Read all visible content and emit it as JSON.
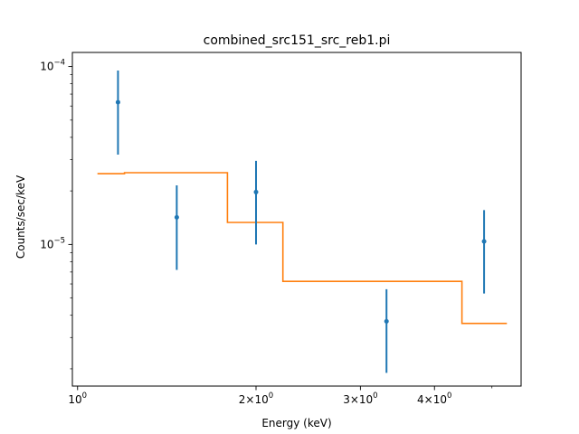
{
  "chart_data": {
    "type": "scatter",
    "title": "combined_src151_src_reb1.pi",
    "xlabel": "Energy (keV)",
    "ylabel": "Counts/sec/keV",
    "x_scale": "log",
    "y_scale": "log",
    "xlim": [
      0.98,
      5.6
    ],
    "ylim": [
      1.6e-06,
      0.00012
    ],
    "grid": false,
    "x_ticks": [
      {
        "value": 1,
        "base": "10",
        "exp": "0"
      },
      {
        "value": 2,
        "base": "2×10",
        "exp": "0"
      },
      {
        "value": 3,
        "base": "3×10",
        "exp": "0"
      },
      {
        "value": 4,
        "base": "4×10",
        "exp": "0"
      }
    ],
    "x_minor_ticks": [
      5
    ],
    "y_ticks": [
      {
        "value": 1e-05,
        "base": "10",
        "exp": "−5"
      },
      {
        "value": 0.0001,
        "base": "10",
        "exp": "−4"
      }
    ],
    "y_minor_ticks": [
      2e-06,
      3e-06,
      4e-06,
      5e-06,
      6e-06,
      7e-06,
      8e-06,
      9e-06,
      2e-05,
      3e-05,
      4e-05,
      5e-05,
      6e-05,
      7e-05,
      8e-05,
      9e-05
    ],
    "data_points": [
      {
        "x": 1.17,
        "y": 6.3e-05,
        "ylow": 3.2e-05,
        "yhigh": 9.5e-05
      },
      {
        "x": 1.47,
        "y": 1.42e-05,
        "ylow": 7.2e-06,
        "yhigh": 2.15e-05
      },
      {
        "x": 2.0,
        "y": 1.97e-05,
        "ylow": 1e-05,
        "yhigh": 2.95e-05
      },
      {
        "x": 3.32,
        "y": 3.7e-06,
        "ylow": 1.9e-06,
        "yhigh": 5.6e-06
      },
      {
        "x": 4.85,
        "y": 1.04e-05,
        "ylow": 5.3e-06,
        "yhigh": 1.56e-05
      }
    ],
    "model_steps": [
      {
        "x0": 1.08,
        "x1": 1.2,
        "y": 2.5e-05
      },
      {
        "x0": 1.2,
        "x1": 1.79,
        "y": 2.53e-05
      },
      {
        "x0": 1.79,
        "x1": 2.22,
        "y": 1.33e-05
      },
      {
        "x0": 2.22,
        "x1": 4.45,
        "y": 6.2e-06
      },
      {
        "x0": 4.45,
        "x1": 5.3,
        "y": 3.6e-06
      }
    ],
    "colors": {
      "data": "#1f77b4",
      "model": "#ff7f0e",
      "axes": "#000000"
    }
  }
}
